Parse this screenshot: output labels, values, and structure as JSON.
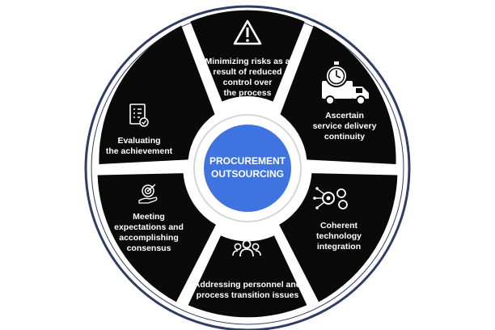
{
  "center": {
    "lines": [
      "PROCUREMENT",
      "OUTSOURCING"
    ]
  },
  "segments": [
    {
      "icon": "warning-icon",
      "lines": [
        "Minimizing risks as a",
        "result of reduced",
        "control over",
        "the process"
      ]
    },
    {
      "icon": "delivery-truck-clock-icon",
      "lines": [
        "Ascertain",
        "service delivery",
        "continuity"
      ]
    },
    {
      "icon": "technology-gears-icon",
      "lines": [
        "Coherent",
        "technology",
        "integration"
      ]
    },
    {
      "icon": "people-group-icon",
      "lines": [
        "Addressing personnel and",
        "process transition issues"
      ]
    },
    {
      "icon": "target-hand-icon",
      "lines": [
        "Meeting",
        "expectations and",
        "accomplishing",
        "consensus"
      ]
    },
    {
      "icon": "checklist-icon",
      "lines": [
        "Evaluating",
        "the achievement"
      ]
    }
  ],
  "colors": {
    "segment": "#0a0a0a",
    "ring_outer": "#ffffff",
    "ring_border": "#2f3c63",
    "hub": "#3f74e0",
    "hub_ring": "#dddddd",
    "text": "#ffffff"
  }
}
